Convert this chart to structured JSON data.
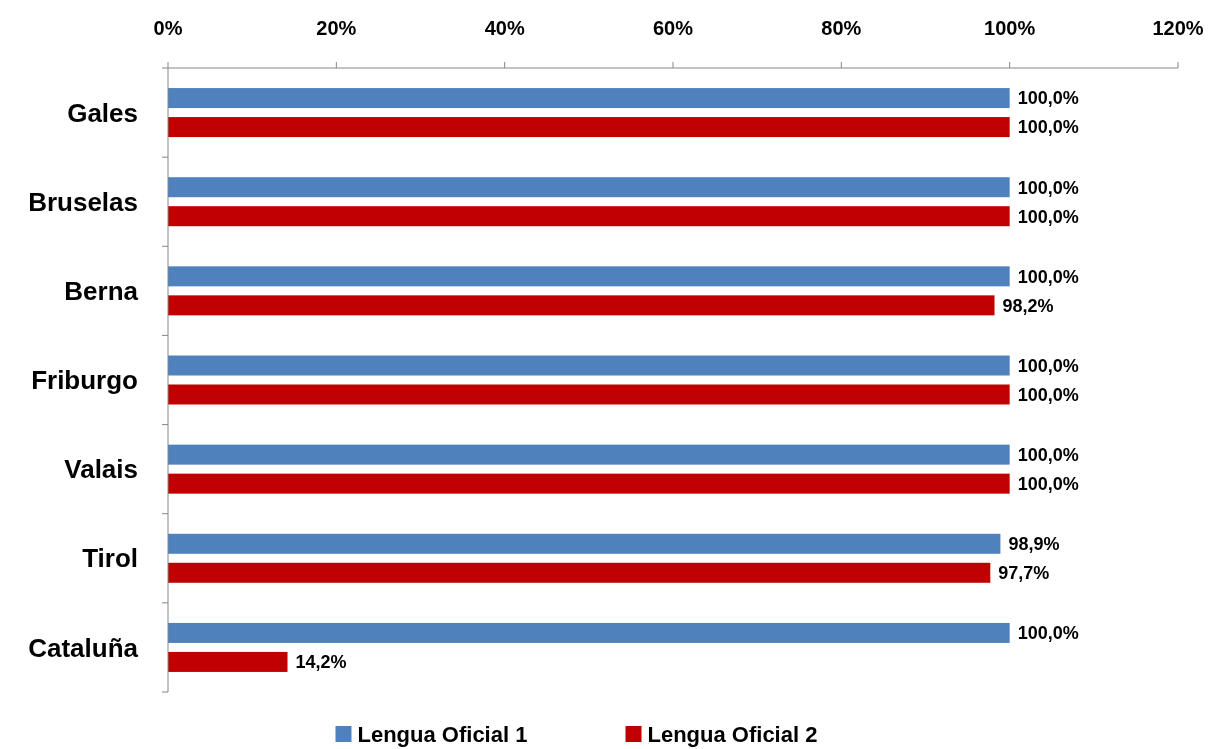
{
  "chart_data": {
    "type": "bar",
    "orientation": "horizontal",
    "categories": [
      "Gales",
      "Bruselas",
      "Berna",
      "Friburgo",
      "Valais",
      "Tirol",
      "Cataluña"
    ],
    "series": [
      {
        "name": "Lengua Oficial 1",
        "color": "#4f81bd",
        "values": [
          100.0,
          100.0,
          100.0,
          100.0,
          100.0,
          98.9,
          100.0
        ],
        "value_labels": [
          "100,0%",
          "100,0%",
          "100,0%",
          "100,0%",
          "100,0%",
          "98,9%",
          "100,0%"
        ]
      },
      {
        "name": "Lengua Oficial 2",
        "color": "#c00000",
        "values": [
          100.0,
          100.0,
          98.2,
          100.0,
          100.0,
          97.7,
          14.2
        ],
        "value_labels": [
          "100,0%",
          "100,0%",
          "98,2%",
          "100,0%",
          "100,0%",
          "97,7%",
          "14,2%"
        ]
      }
    ],
    "xlim": [
      0,
      120
    ],
    "xticks": [
      {
        "value": 0,
        "label": "0%"
      },
      {
        "value": 20,
        "label": "20%"
      },
      {
        "value": 40,
        "label": "40%"
      },
      {
        "value": 60,
        "label": "60%"
      },
      {
        "value": 80,
        "label": "80%"
      },
      {
        "value": 100,
        "label": "100%"
      },
      {
        "value": 120,
        "label": "120%"
      }
    ],
    "grid": false,
    "legend": "bottom"
  }
}
